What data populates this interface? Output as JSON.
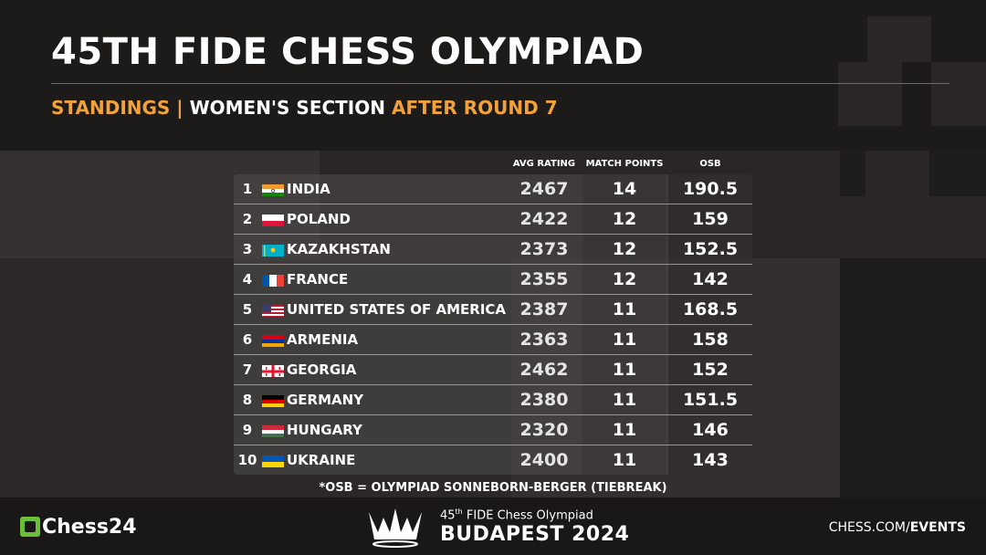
{
  "header": {
    "title": "45TH FIDE CHESS OLYMPIAD",
    "subtitle_part1": "STANDINGS |",
    "subtitle_part2": "WOMEN'S SECTION",
    "subtitle_part3": "AFTER ROUND 7"
  },
  "columns": {
    "avg_rating": "AVG RATING",
    "match_points": "MATCH POINTS",
    "osb": "OSB"
  },
  "standings": [
    {
      "rank": "1",
      "country": "INDIA",
      "flag": "india-flag",
      "rating": "2467",
      "mp": "14",
      "osb": "190.5"
    },
    {
      "rank": "2",
      "country": "POLAND",
      "flag": "poland-flag",
      "rating": "2422",
      "mp": "12",
      "osb": "159"
    },
    {
      "rank": "3",
      "country": "KAZAKHSTAN",
      "flag": "kazakhstan-flag",
      "rating": "2373",
      "mp": "12",
      "osb": "152.5"
    },
    {
      "rank": "4",
      "country": "FRANCE",
      "flag": "france-flag",
      "rating": "2355",
      "mp": "12",
      "osb": "142"
    },
    {
      "rank": "5",
      "country": "UNITED STATES OF AMERICA",
      "flag": "usa-flag",
      "rating": "2387",
      "mp": "11",
      "osb": "168.5"
    },
    {
      "rank": "6",
      "country": "ARMENIA",
      "flag": "armenia-flag",
      "rating": "2363",
      "mp": "11",
      "osb": "158"
    },
    {
      "rank": "7",
      "country": "GEORGIA",
      "flag": "georgia-flag",
      "rating": "2462",
      "mp": "11",
      "osb": "152"
    },
    {
      "rank": "8",
      "country": "GERMANY",
      "flag": "germany-flag",
      "rating": "2380",
      "mp": "11",
      "osb": "151.5"
    },
    {
      "rank": "9",
      "country": "HUNGARY",
      "flag": "hungary-flag",
      "rating": "2320",
      "mp": "11",
      "osb": "146"
    },
    {
      "rank": "10",
      "country": "UKRAINE",
      "flag": "ukraine-flag",
      "rating": "2400",
      "mp": "11",
      "osb": "143"
    }
  ],
  "footnote": "*OSB = OLYMPIAD SONNEBORN-BERGER (TIEBREAK)",
  "footer": {
    "chess24_logo": "Chess24",
    "event_line1_prefix": "45",
    "event_line1_sup": "th",
    "event_line1_rest": " FIDE Chess Olympiad",
    "event_line2": "BUDAPEST 2024",
    "link_part1": "CHESS.COM/",
    "link_part2": "EVENTS"
  },
  "colors": {
    "accent": "#f2a23a",
    "chess24_green": "#6bbf3b",
    "background": "#262223"
  }
}
